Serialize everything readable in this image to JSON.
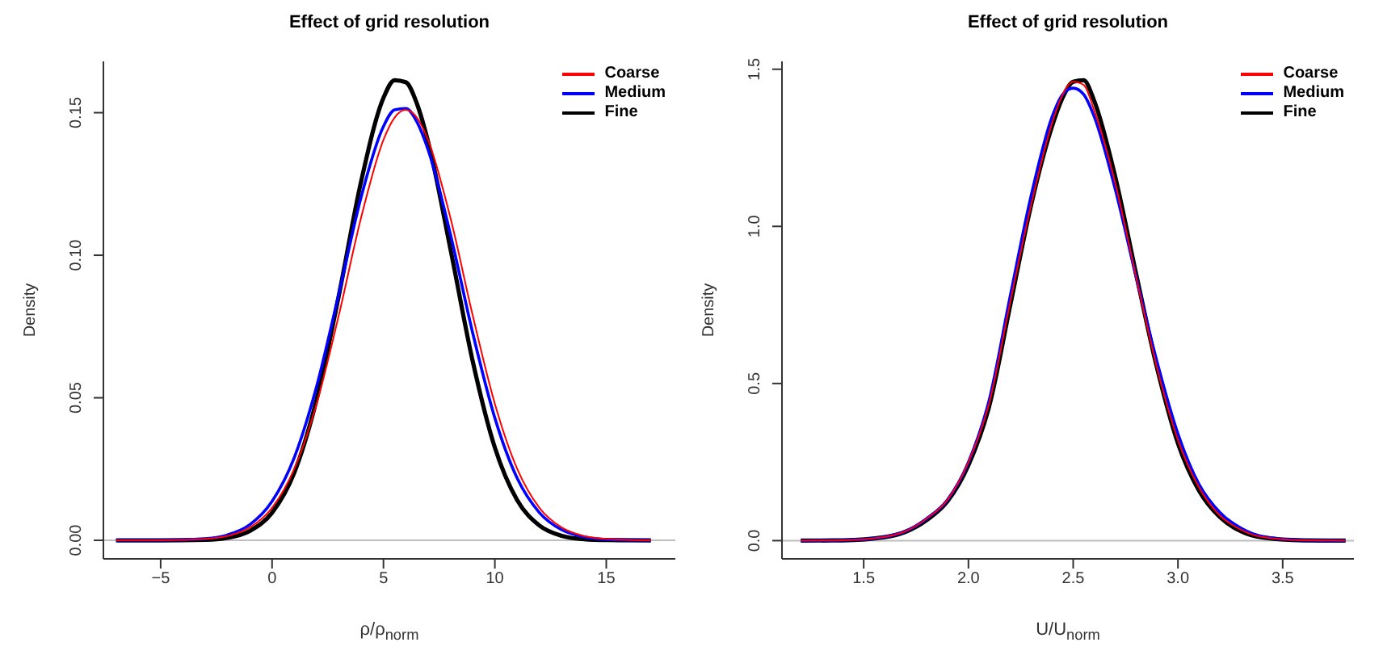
{
  "chart_data": [
    {
      "type": "line",
      "title": "Effect of grid resolution",
      "xlabel": "ρ/ρ$_{norm}$",
      "ylabel": "Density",
      "legend": "top right",
      "x": [
        -7,
        -5,
        -3,
        -2,
        -1,
        0,
        1,
        2,
        3,
        4,
        5,
        5.5,
        6,
        6.5,
        7,
        8,
        9,
        10,
        11,
        12,
        13,
        14,
        15,
        17
      ],
      "series": [
        {
          "name": "Coarse",
          "color": "#ff0000",
          "values": [
            0,
            0,
            0.0005,
            0.0015,
            0.0045,
            0.0114,
            0.0251,
            0.0479,
            0.0791,
            0.1133,
            0.1405,
            0.1483,
            0.151,
            0.1483,
            0.1405,
            0.1133,
            0.0791,
            0.0479,
            0.0251,
            0.0114,
            0.0045,
            0.0015,
            0.0005,
            0
          ]
        },
        {
          "name": "Medium",
          "color": "#0000ff",
          "values": [
            0,
            0,
            0.0006,
            0.0019,
            0.0055,
            0.0137,
            0.0291,
            0.054,
            0.0866,
            0.1205,
            0.1452,
            0.151,
            0.1515,
            0.1468,
            0.1371,
            0.1075,
            0.0729,
            0.0429,
            0.0218,
            0.0097,
            0.0037,
            0.0012,
            0.0003,
            0
          ]
        },
        {
          "name": "Fine",
          "color": "#000000",
          "values": [
            0,
            0,
            0.0002,
            0.0009,
            0.0033,
            0.0097,
            0.0238,
            0.0494,
            0.086,
            0.126,
            0.1552,
            0.1614,
            0.1607,
            0.1532,
            0.1399,
            0.1024,
            0.063,
            0.0325,
            0.0141,
            0.0052,
            0.0016,
            0.0004,
            0.0001,
            0
          ]
        }
      ],
      "xlim": [
        -7.57,
        18.1
      ],
      "xticks": [
        {
          "value": -5,
          "label": "−5"
        },
        0,
        5,
        10,
        15
      ],
      "ylim": [
        -0.0065,
        0.168
      ],
      "yticks": [
        {
          "value": 0,
          "label": "0.00"
        },
        0.05,
        {
          "value": 0.1,
          "label": "0.10"
        },
        0.15
      ],
      "ref_lines": [
        {
          "axis": "y",
          "value": 0,
          "color": "#bebebe"
        }
      ]
    },
    {
      "type": "line",
      "title": "Effect of grid resolution",
      "xlabel": "U/U$_{norm}$",
      "ylabel": "Density",
      "legend": "top right",
      "x": [
        1.2,
        1.4,
        1.6,
        1.7,
        1.8,
        1.9,
        2.0,
        2.1,
        2.2,
        2.3,
        2.4,
        2.45,
        2.5,
        2.55,
        2.6,
        2.7,
        2.8,
        2.9,
        3.0,
        3.1,
        3.2,
        3.3,
        3.4,
        3.6,
        3.8
      ],
      "series": [
        {
          "name": "Coarse",
          "color": "#ff0000",
          "values": [
            0,
            0.001,
            0.012,
            0.03,
            0.07,
            0.13,
            0.25,
            0.44,
            0.76,
            1.07,
            1.33,
            1.42,
            1.46,
            1.45,
            1.37,
            1.14,
            0.84,
            0.55,
            0.32,
            0.17,
            0.08,
            0.035,
            0.012,
            0.001,
            0
          ]
        },
        {
          "name": "Medium",
          "color": "#0000ff",
          "values": [
            0,
            0.001,
            0.012,
            0.03,
            0.07,
            0.13,
            0.25,
            0.45,
            0.78,
            1.1,
            1.35,
            1.42,
            1.44,
            1.42,
            1.35,
            1.12,
            0.84,
            0.57,
            0.34,
            0.18,
            0.09,
            0.04,
            0.014,
            0.001,
            0
          ]
        },
        {
          "name": "Fine",
          "color": "#000000",
          "values": [
            0,
            0.001,
            0.011,
            0.028,
            0.065,
            0.125,
            0.24,
            0.43,
            0.75,
            1.07,
            1.32,
            1.41,
            1.46,
            1.465,
            1.4,
            1.16,
            0.85,
            0.55,
            0.31,
            0.16,
            0.075,
            0.03,
            0.01,
            0.001,
            0
          ]
        }
      ],
      "xlim": [
        1.11,
        3.84
      ],
      "xticks": [
        1.5,
        {
          "value": 2,
          "label": "2.0"
        },
        2.5,
        {
          "value": 3,
          "label": "3.0"
        },
        3.5
      ],
      "ylim": [
        -0.058,
        1.525
      ],
      "yticks": [
        {
          "value": 0,
          "label": "0.0"
        },
        0.5,
        {
          "value": 1,
          "label": "1.0"
        },
        1.5
      ],
      "ref_lines": [
        {
          "axis": "y",
          "value": 0,
          "color": "#bebebe"
        }
      ]
    }
  ]
}
